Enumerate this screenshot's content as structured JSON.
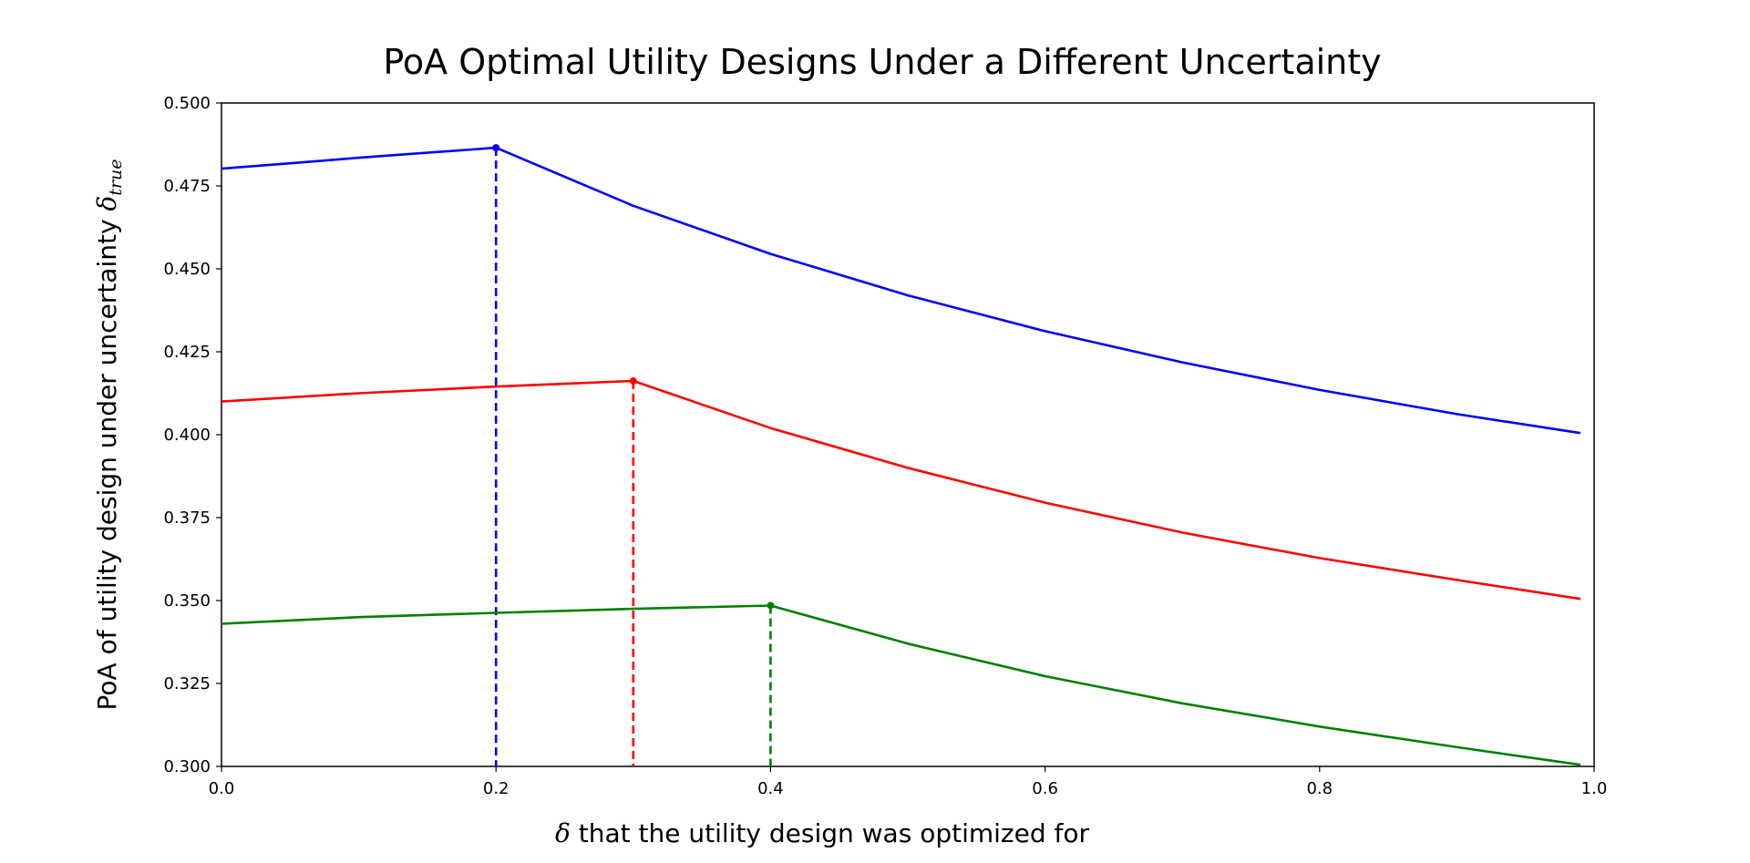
{
  "chart_data": {
    "type": "line",
    "title": "PoA Optimal Utility Designs Under a Different Uncertainty",
    "xlabel": {
      "symbol": "δ",
      "text": " that the utility design was optimized for"
    },
    "ylabel": {
      "text": "PoA of utility design under uncertainty ",
      "symbol": "δ",
      "subscript": "true"
    },
    "xlim": [
      0.0,
      1.0
    ],
    "ylim": [
      0.3,
      0.5
    ],
    "xticks": [
      "0.0",
      "0.2",
      "0.4",
      "0.6",
      "0.8",
      "1.0"
    ],
    "yticks": [
      "0.300",
      "0.325",
      "0.350",
      "0.375",
      "0.400",
      "0.425",
      "0.450",
      "0.475",
      "0.500"
    ],
    "grid": false,
    "series": [
      {
        "color": "#0000ff",
        "peak": [
          0.2,
          0.4865
        ],
        "x": [
          0.0,
          0.05,
          0.1,
          0.15,
          0.2,
          0.3,
          0.4,
          0.5,
          0.6,
          0.7,
          0.8,
          0.9,
          0.99
        ],
        "y": [
          0.4802,
          0.4818,
          0.4835,
          0.485,
          0.4865,
          0.469,
          0.4545,
          0.442,
          0.4312,
          0.4218,
          0.4135,
          0.4062,
          0.4005
        ]
      },
      {
        "color": "#ff0000",
        "peak": [
          0.3,
          0.4162
        ],
        "x": [
          0.0,
          0.1,
          0.2,
          0.3,
          0.4,
          0.5,
          0.6,
          0.7,
          0.8,
          0.9,
          0.99
        ],
        "y": [
          0.41,
          0.4125,
          0.4145,
          0.4162,
          0.402,
          0.39,
          0.3795,
          0.3705,
          0.3628,
          0.3562,
          0.3505
        ]
      },
      {
        "color": "#008000",
        "peak": [
          0.4,
          0.3485
        ],
        "x": [
          0.0,
          0.1,
          0.2,
          0.3,
          0.4,
          0.5,
          0.6,
          0.7,
          0.8,
          0.9,
          0.99
        ],
        "y": [
          0.343,
          0.345,
          0.3463,
          0.3475,
          0.3485,
          0.337,
          0.3272,
          0.319,
          0.312,
          0.3058,
          0.3005
        ]
      }
    ]
  }
}
